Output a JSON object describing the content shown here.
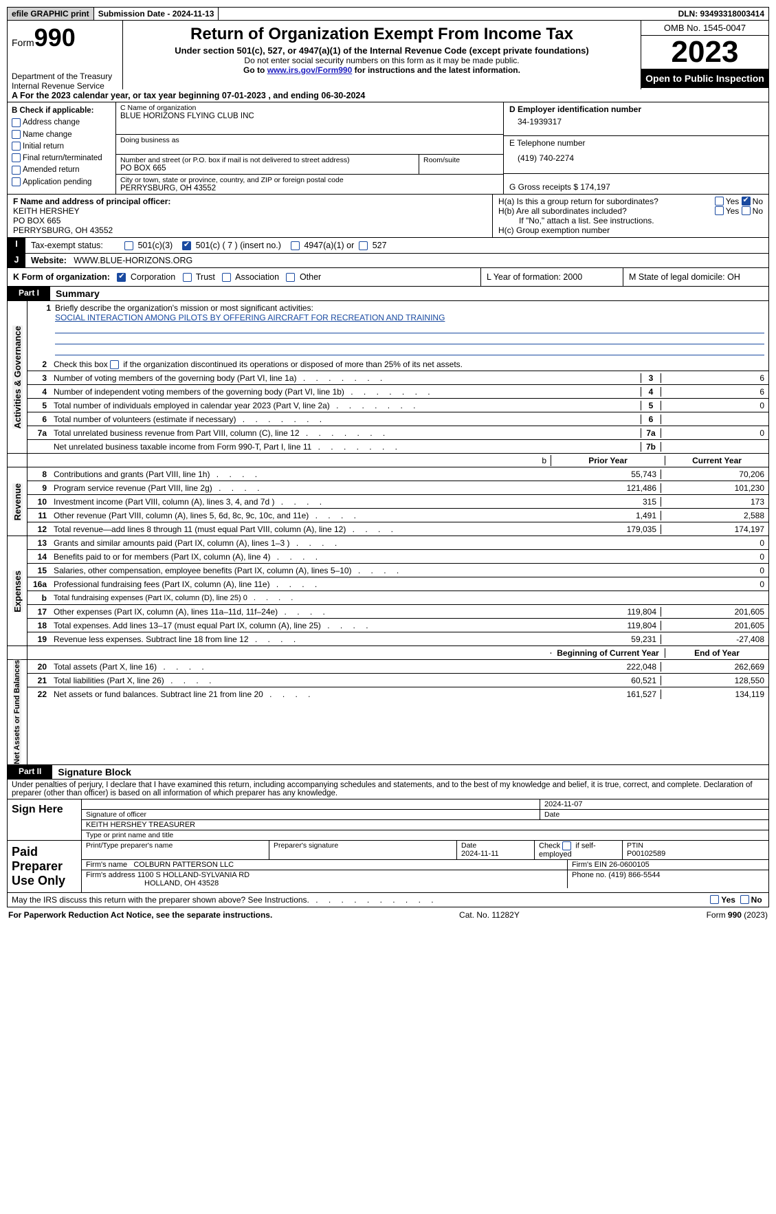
{
  "topbar": {
    "efile": "efile GRAPHIC print",
    "submission_label": "Submission Date - 2024-11-13",
    "dln_label": "DLN: 93493318003414"
  },
  "header": {
    "form_prefix": "Form",
    "form_number": "990",
    "dept1": "Department of the Treasury",
    "dept2": "Internal Revenue Service",
    "title": "Return of Organization Exempt From Income Tax",
    "subtitle": "Under section 501(c), 527, or 4947(a)(1) of the Internal Revenue Code (except private foundations)",
    "note1": "Do not enter social security numbers on this form as it may be made public.",
    "note2_pre": "Go to ",
    "note2_link": "www.irs.gov/Form990",
    "note2_post": " for instructions and the latest information.",
    "omb": "OMB No. 1545-0047",
    "year": "2023",
    "public": "Open to Public Inspection"
  },
  "rowA": "A  For the 2023 calendar year, or tax year beginning 07-01-2023    , and ending 06-30-2024",
  "boxB": {
    "title": "B Check if applicable:",
    "opts": [
      "Address change",
      "Name change",
      "Initial return",
      "Final return/terminated",
      "Amended return",
      "Application pending"
    ]
  },
  "boxC": {
    "name_lbl": "C Name of organization",
    "name": "BLUE HORIZONS FLYING CLUB INC",
    "dba_lbl": "Doing business as",
    "street_lbl": "Number and street (or P.O. box if mail is not delivered to street address)",
    "room_lbl": "Room/suite",
    "street": "PO BOX 665",
    "city_lbl": "City or town, state or province, country, and ZIP or foreign postal code",
    "city": "PERRYSBURG, OH  43552"
  },
  "boxD": {
    "lbl": "D Employer identification number",
    "val": "34-1939317"
  },
  "boxE": {
    "lbl": "E Telephone number",
    "val": "(419) 740-2274"
  },
  "boxG": {
    "lbl": "G Gross receipts $ 174,197"
  },
  "boxF": {
    "lbl": "F  Name and address of principal officer:",
    "l1": "KEITH HERSHEY",
    "l2": "PO BOX 665",
    "l3": "PERRYSBURG, OH  43552"
  },
  "boxH": {
    "a_lbl": "H(a)  Is this a group return for subordinates?",
    "b_lbl": "H(b)  Are all subordinates included?",
    "b_note": "If \"No,\" attach a list. See instructions.",
    "c_lbl": "H(c)  Group exemption number  ",
    "yes": "Yes",
    "no": "No"
  },
  "rowI": {
    "lbl": "Tax-exempt status:",
    "o1": "501(c)(3)",
    "o2": "501(c) ( 7 ) (insert no.)",
    "o3": "4947(a)(1) or",
    "o4": "527"
  },
  "rowJ": {
    "lbl": "Website:  ",
    "val": "WWW.BLUE-HORIZONS.ORG"
  },
  "rowK": {
    "lbl": "K Form of organization:",
    "o1": "Corporation",
    "o2": "Trust",
    "o3": "Association",
    "o4": "Other",
    "L": "L Year of formation: 2000",
    "M": "M State of legal domicile: OH"
  },
  "part1": {
    "tab": "Part I",
    "title": "Summary"
  },
  "sec_ag": {
    "vlabel": "Activities & Governance",
    "l1_lbl": "Briefly describe the organization's mission or most significant activities:",
    "l1_val": "SOCIAL INTERACTION AMONG PILOTS BY OFFERING AIRCRAFT FOR RECREATION AND TRAINING",
    "l2": "Check this box       if the organization discontinued its operations or disposed of more than 25% of its net assets.",
    "lines": [
      {
        "n": "3",
        "t": "Number of voting members of the governing body (Part VI, line 1a)",
        "nb": "3",
        "v": "6"
      },
      {
        "n": "4",
        "t": "Number of independent voting members of the governing body (Part VI, line 1b)",
        "nb": "4",
        "v": "6"
      },
      {
        "n": "5",
        "t": "Total number of individuals employed in calendar year 2023 (Part V, line 2a)",
        "nb": "5",
        "v": "0"
      },
      {
        "n": "6",
        "t": "Total number of volunteers (estimate if necessary)",
        "nb": "6",
        "v": ""
      },
      {
        "n": "7a",
        "t": "Total unrelated business revenue from Part VIII, column (C), line 12",
        "nb": "7a",
        "v": "0"
      },
      {
        "n": "",
        "t": "Net unrelated business taxable income from Form 990-T, Part I, line 11",
        "nb": "7b",
        "v": ""
      }
    ]
  },
  "hdr_yrs": {
    "b": "b",
    "py": "Prior Year",
    "cy": "Current Year"
  },
  "sec_rev": {
    "vlabel": "Revenue",
    "lines": [
      {
        "n": "8",
        "t": "Contributions and grants (Part VIII, line 1h)",
        "py": "55,743",
        "cy": "70,206"
      },
      {
        "n": "9",
        "t": "Program service revenue (Part VIII, line 2g)",
        "py": "121,486",
        "cy": "101,230"
      },
      {
        "n": "10",
        "t": "Investment income (Part VIII, column (A), lines 3, 4, and 7d )",
        "py": "315",
        "cy": "173"
      },
      {
        "n": "11",
        "t": "Other revenue (Part VIII, column (A), lines 5, 6d, 8c, 9c, 10c, and 11e)",
        "py": "1,491",
        "cy": "2,588"
      },
      {
        "n": "12",
        "t": "Total revenue—add lines 8 through 11 (must equal Part VIII, column (A), line 12)",
        "py": "179,035",
        "cy": "174,197"
      }
    ]
  },
  "sec_exp": {
    "vlabel": "Expenses",
    "lines": [
      {
        "n": "13",
        "t": "Grants and similar amounts paid (Part IX, column (A), lines 1–3 )",
        "py": "",
        "cy": "0"
      },
      {
        "n": "14",
        "t": "Benefits paid to or for members (Part IX, column (A), line 4)",
        "py": "",
        "cy": "0"
      },
      {
        "n": "15",
        "t": "Salaries, other compensation, employee benefits (Part IX, column (A), lines 5–10)",
        "py": "",
        "cy": "0"
      },
      {
        "n": "16a",
        "t": "Professional fundraising fees (Part IX, column (A), line 11e)",
        "py": "",
        "cy": "0"
      },
      {
        "n": "b",
        "t": "Total fundraising expenses (Part IX, column (D), line 25) 0",
        "py": "shade",
        "cy": "shade"
      },
      {
        "n": "17",
        "t": "Other expenses (Part IX, column (A), lines 11a–11d, 11f–24e)",
        "py": "119,804",
        "cy": "201,605"
      },
      {
        "n": "18",
        "t": "Total expenses. Add lines 13–17 (must equal Part IX, column (A), line 25)",
        "py": "119,804",
        "cy": "201,605"
      },
      {
        "n": "19",
        "t": "Revenue less expenses. Subtract line 18 from line 12",
        "py": "59,231",
        "cy": "-27,408"
      }
    ]
  },
  "hdr_yrs2": {
    "py": "Beginning of Current Year",
    "cy": "End of Year"
  },
  "sec_na": {
    "vlabel": "Net Assets or Fund Balances",
    "lines": [
      {
        "n": "20",
        "t": "Total assets (Part X, line 16)",
        "py": "222,048",
        "cy": "262,669"
      },
      {
        "n": "21",
        "t": "Total liabilities (Part X, line 26)",
        "py": "60,521",
        "cy": "128,550"
      },
      {
        "n": "22",
        "t": "Net assets or fund balances. Subtract line 21 from line 20",
        "py": "161,527",
        "cy": "134,119"
      }
    ]
  },
  "part2": {
    "tab": "Part II",
    "title": "Signature Block"
  },
  "penalty": "Under penalties of perjury, I declare that I have examined this return, including accompanying schedules and statements, and to the best of my knowledge and belief, it is true, correct, and complete. Declaration of preparer (other than officer) is based on all information of which preparer has any knowledge.",
  "sign": {
    "here": "Sign Here",
    "date": "2024-11-07",
    "sig_lbl": "Signature of officer",
    "date_lbl": "Date",
    "name": "KEITH HERSHEY TREASURER",
    "name_lbl": "Type or print name and title"
  },
  "prep": {
    "lead": "Paid Preparer Use Only",
    "c1": "Print/Type preparer's name",
    "c2": "Preparer's signature",
    "c3": "Date",
    "c3v": "2024-11-11",
    "c4": "Check        if self-employed",
    "c5": "PTIN",
    "c5v": "P00102589",
    "firm_lbl": "Firm's name      ",
    "firm": "COLBURN PATTERSON LLC",
    "ein": "Firm's EIN  26-0600105",
    "addr_lbl": "Firm's address ",
    "addr1": "1100 S HOLLAND-SYLVANIA RD",
    "addr2": "HOLLAND, OH  43528",
    "phone": "Phone no. (419) 866-5544"
  },
  "discuss": "May the IRS discuss this return with the preparer shown above? See Instructions.",
  "footer": {
    "l": "For Paperwork Reduction Act Notice, see the separate instructions.",
    "m": "Cat. No. 11282Y",
    "r": "Form 990 (2023)"
  }
}
